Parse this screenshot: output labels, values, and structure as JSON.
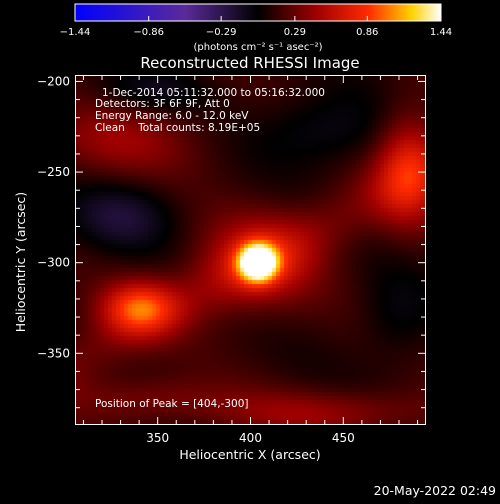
{
  "chart_data": {
    "type": "heatmap",
    "title": "Reconstructed RHESSI Image",
    "xlabel": "Heliocentric X (arcsec)",
    "ylabel": "Heliocentric Y (arcsec)",
    "xlim": [
      306,
      494
    ],
    "ylim": [
      -389,
      -197
    ],
    "xticks": [
      350,
      400,
      450
    ],
    "yticks": [
      -200,
      -250,
      -300,
      -350
    ],
    "info_lines": [
      "1-Dec-2014 05:11:32.000 to 05:16:32.000",
      "Detectors: 3F 6F 9F, Att 0",
      "Energy Range: 6.0 - 12.0 keV",
      "Clean    Total counts: 8.19E+05"
    ],
    "peak_label": "Position of Peak = [404,-300]",
    "peak": [
      404,
      -300
    ],
    "colormap": "red-temperature (blue-purple negative, black zero, red-yellow-white positive)",
    "colorbar": {
      "range": [
        -1.44,
        1.44
      ],
      "ticks": [
        "-1.44",
        "-0.86",
        "-0.29",
        "0.29",
        "0.86",
        "1.44"
      ],
      "unit_label": "(photons cm⁻² s⁻¹ asec⁻²)"
    },
    "sources": [
      {
        "x": 404,
        "y": -300,
        "sx": 7,
        "sy": 7,
        "amp": 1.44
      },
      {
        "x": 404,
        "y": -300,
        "sx": 22,
        "sy": 18,
        "amp": 0.45
      },
      {
        "x": 340,
        "y": -325,
        "sx": 14,
        "sy": 10,
        "amp": 0.7
      },
      {
        "x": 485,
        "y": -247,
        "sx": 12,
        "sy": 22,
        "amp": 0.55
      },
      {
        "x": 330,
        "y": -233,
        "sx": 32,
        "sy": 14,
        "amp": 0.28
      },
      {
        "x": 440,
        "y": -383,
        "sx": 45,
        "sy": 9,
        "amp": 0.3
      },
      {
        "x": 345,
        "y": -375,
        "sx": 30,
        "sy": 9,
        "amp": 0.22
      },
      {
        "x": 330,
        "y": -275,
        "sx": 20,
        "sy": 13,
        "amp": -0.28
      },
      {
        "x": 440,
        "y": -227,
        "sx": 26,
        "sy": 14,
        "amp": -0.22
      },
      {
        "x": 350,
        "y": -205,
        "sx": 20,
        "sy": 8,
        "amp": -0.18
      },
      {
        "x": 478,
        "y": -330,
        "sx": 14,
        "sy": 18,
        "amp": -0.16
      }
    ]
  },
  "timestamp": "20-May-2022 02:49"
}
